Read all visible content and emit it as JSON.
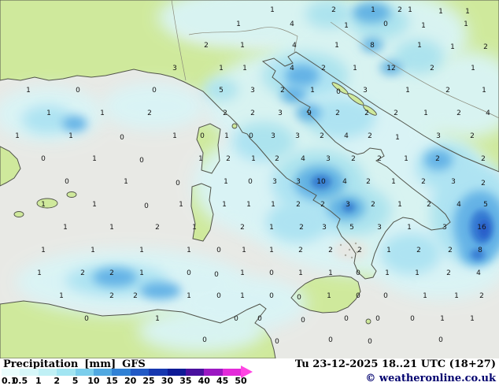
{
  "map": {
    "sea_color": "#e8e9e5",
    "land_color": "#cfe99c",
    "coast_color": "#51544a",
    "border_color": "#8a8a7a",
    "value_color": "#151515",
    "palette": {
      "pale": "#d9f4f6",
      "med": "#abe3f3",
      "blue": "#5eb1e7",
      "deep": "#2e77d3",
      "deepest": "#1b55c8",
      "alps": "#efefe9",
      "grayspot": "#e7e7e3",
      "dots": "#a9a9a0"
    },
    "values": [
      [
        346,
        12,
        "1"
      ],
      [
        424,
        12,
        "2"
      ],
      [
        474,
        12,
        "1"
      ],
      [
        508,
        12,
        "2"
      ],
      [
        521,
        12,
        "1"
      ],
      [
        560,
        14,
        "1"
      ],
      [
        594,
        14,
        "1"
      ],
      [
        303,
        30,
        "1"
      ],
      [
        371,
        30,
        "4"
      ],
      [
        440,
        32,
        "1"
      ],
      [
        490,
        30,
        "0"
      ],
      [
        538,
        32,
        "1"
      ],
      [
        592,
        30,
        "1"
      ],
      [
        262,
        57,
        "2"
      ],
      [
        308,
        57,
        "1"
      ],
      [
        374,
        57,
        "4"
      ],
      [
        428,
        57,
        "1"
      ],
      [
        473,
        57,
        "8"
      ],
      [
        533,
        57,
        "1"
      ],
      [
        575,
        59,
        "1"
      ],
      [
        617,
        59,
        "2"
      ],
      [
        222,
        86,
        "3"
      ],
      [
        281,
        86,
        "1"
      ],
      [
        311,
        86,
        "1"
      ],
      [
        371,
        86,
        "4"
      ],
      [
        411,
        86,
        "2"
      ],
      [
        451,
        86,
        "1"
      ],
      [
        497,
        86,
        "12"
      ],
      [
        549,
        86,
        "2"
      ],
      [
        601,
        86,
        "1"
      ],
      [
        36,
        114,
        "1"
      ],
      [
        99,
        114,
        "0"
      ],
      [
        196,
        114,
        "0"
      ],
      [
        281,
        114,
        "5"
      ],
      [
        321,
        114,
        "3"
      ],
      [
        359,
        114,
        "2"
      ],
      [
        397,
        114,
        "1"
      ],
      [
        430,
        116,
        "0"
      ],
      [
        464,
        114,
        "3"
      ],
      [
        518,
        114,
        "1"
      ],
      [
        569,
        114,
        "2"
      ],
      [
        615,
        114,
        "1"
      ],
      [
        62,
        143,
        "1"
      ],
      [
        130,
        143,
        "1"
      ],
      [
        190,
        143,
        "2"
      ],
      [
        286,
        143,
        "2"
      ],
      [
        321,
        143,
        "2"
      ],
      [
        356,
        143,
        "3"
      ],
      [
        393,
        143,
        "9"
      ],
      [
        429,
        143,
        "2"
      ],
      [
        466,
        143,
        "2"
      ],
      [
        503,
        143,
        "2"
      ],
      [
        541,
        143,
        "1"
      ],
      [
        583,
        143,
        "2"
      ],
      [
        620,
        143,
        "4"
      ],
      [
        22,
        172,
        "1"
      ],
      [
        90,
        172,
        "1"
      ],
      [
        155,
        174,
        "0"
      ],
      [
        222,
        172,
        "1"
      ],
      [
        257,
        172,
        "0"
      ],
      [
        288,
        172,
        "1"
      ],
      [
        319,
        172,
        "0"
      ],
      [
        347,
        172,
        "3"
      ],
      [
        378,
        172,
        "3"
      ],
      [
        409,
        172,
        "2"
      ],
      [
        440,
        172,
        "4"
      ],
      [
        470,
        172,
        "2"
      ],
      [
        505,
        174,
        "1"
      ],
      [
        557,
        172,
        "3"
      ],
      [
        600,
        172,
        "2"
      ],
      [
        55,
        201,
        "0"
      ],
      [
        120,
        201,
        "1"
      ],
      [
        180,
        203,
        "0"
      ],
      [
        255,
        201,
        "1"
      ],
      [
        290,
        201,
        "2"
      ],
      [
        322,
        201,
        "1"
      ],
      [
        352,
        201,
        "2"
      ],
      [
        385,
        201,
        "4"
      ],
      [
        417,
        201,
        "3"
      ],
      [
        449,
        201,
        "2"
      ],
      [
        482,
        201,
        "2"
      ],
      [
        516,
        201,
        "1"
      ],
      [
        556,
        201,
        "2"
      ],
      [
        614,
        201,
        "2"
      ],
      [
        85,
        230,
        "0"
      ],
      [
        160,
        230,
        "1"
      ],
      [
        226,
        232,
        "0"
      ],
      [
        287,
        230,
        "1"
      ],
      [
        318,
        230,
        "0"
      ],
      [
        349,
        230,
        "3"
      ],
      [
        379,
        230,
        "3"
      ],
      [
        408,
        230,
        "10"
      ],
      [
        438,
        230,
        "4"
      ],
      [
        468,
        230,
        "2"
      ],
      [
        500,
        230,
        "1"
      ],
      [
        538,
        230,
        "2"
      ],
      [
        576,
        230,
        "3"
      ],
      [
        614,
        232,
        "2"
      ],
      [
        55,
        259,
        "1"
      ],
      [
        120,
        259,
        "1"
      ],
      [
        186,
        261,
        "0"
      ],
      [
        230,
        259,
        "1"
      ],
      [
        285,
        259,
        "1"
      ],
      [
        316,
        259,
        "1"
      ],
      [
        347,
        259,
        "1"
      ],
      [
        379,
        259,
        "2"
      ],
      [
        410,
        259,
        "2"
      ],
      [
        442,
        259,
        "3"
      ],
      [
        474,
        259,
        "2"
      ],
      [
        508,
        259,
        "1"
      ],
      [
        545,
        259,
        "2"
      ],
      [
        583,
        259,
        "4"
      ],
      [
        617,
        259,
        "5"
      ],
      [
        83,
        288,
        "1"
      ],
      [
        142,
        288,
        "1"
      ],
      [
        200,
        288,
        "2"
      ],
      [
        247,
        288,
        "1"
      ],
      [
        308,
        288,
        "2"
      ],
      [
        345,
        288,
        "1"
      ],
      [
        383,
        288,
        "2"
      ],
      [
        412,
        288,
        "3"
      ],
      [
        447,
        288,
        "5"
      ],
      [
        482,
        288,
        "3"
      ],
      [
        520,
        288,
        "1"
      ],
      [
        565,
        288,
        "3"
      ],
      [
        612,
        288,
        "16"
      ],
      [
        55,
        317,
        "1"
      ],
      [
        118,
        317,
        "1"
      ],
      [
        180,
        317,
        "1"
      ],
      [
        240,
        317,
        "1"
      ],
      [
        278,
        317,
        "0"
      ],
      [
        310,
        317,
        "1"
      ],
      [
        345,
        317,
        "1"
      ],
      [
        382,
        317,
        "2"
      ],
      [
        420,
        317,
        "2"
      ],
      [
        457,
        317,
        "2"
      ],
      [
        494,
        317,
        "1"
      ],
      [
        532,
        317,
        "2"
      ],
      [
        572,
        317,
        "2"
      ],
      [
        610,
        317,
        "8"
      ],
      [
        50,
        346,
        "1"
      ],
      [
        105,
        346,
        "2"
      ],
      [
        142,
        346,
        "2"
      ],
      [
        180,
        346,
        "1"
      ],
      [
        240,
        346,
        "0"
      ],
      [
        275,
        348,
        "0"
      ],
      [
        308,
        346,
        "1"
      ],
      [
        345,
        346,
        "0"
      ],
      [
        382,
        346,
        "1"
      ],
      [
        420,
        346,
        "1"
      ],
      [
        455,
        346,
        "0"
      ],
      [
        492,
        346,
        "1"
      ],
      [
        530,
        346,
        "1"
      ],
      [
        570,
        346,
        "2"
      ],
      [
        608,
        346,
        "4"
      ],
      [
        78,
        375,
        "1"
      ],
      [
        142,
        375,
        "2"
      ],
      [
        172,
        375,
        "2"
      ],
      [
        240,
        375,
        "1"
      ],
      [
        278,
        375,
        "0"
      ],
      [
        308,
        375,
        "1"
      ],
      [
        345,
        375,
        "0"
      ],
      [
        380,
        377,
        "0"
      ],
      [
        418,
        375,
        "1"
      ],
      [
        455,
        375,
        "0"
      ],
      [
        490,
        375,
        "0"
      ],
      [
        540,
        375,
        "1"
      ],
      [
        580,
        375,
        "1"
      ],
      [
        612,
        375,
        "2"
      ],
      [
        110,
        404,
        "0"
      ],
      [
        200,
        404,
        "1"
      ],
      [
        300,
        404,
        "0"
      ],
      [
        330,
        404,
        "0"
      ],
      [
        385,
        406,
        "0"
      ],
      [
        440,
        404,
        "0"
      ],
      [
        480,
        404,
        "0"
      ],
      [
        524,
        404,
        "0"
      ],
      [
        562,
        404,
        "1"
      ],
      [
        600,
        404,
        "1"
      ],
      [
        260,
        431,
        "0"
      ],
      [
        352,
        433,
        "0"
      ],
      [
        420,
        431,
        "0"
      ],
      [
        470,
        433,
        "0"
      ],
      [
        560,
        431,
        "0"
      ]
    ]
  },
  "footer": {
    "legend_title": "Precipitation",
    "legend_unit": "[mm]",
    "model": "GFS",
    "ticks": [
      "0.1",
      "0.5",
      "1",
      "2",
      "5",
      "10",
      "15",
      "20",
      "25",
      "30",
      "35",
      "40",
      "45",
      "50"
    ],
    "legend_colors": [
      "#eafcfc",
      "#d7f7f9",
      "#c0f0f5",
      "#a2e5f2",
      "#7bceec",
      "#51a9e1",
      "#3081d5",
      "#2159c5",
      "#1637af",
      "#0e1a96",
      "#49109e",
      "#9b18c2",
      "#e32ad9"
    ],
    "arrow_color": "#ff45e2",
    "datetime": "Tu 23-12-2025 18..21 UTC (18+27)",
    "copyright": "© weatheronline.co.uk"
  }
}
